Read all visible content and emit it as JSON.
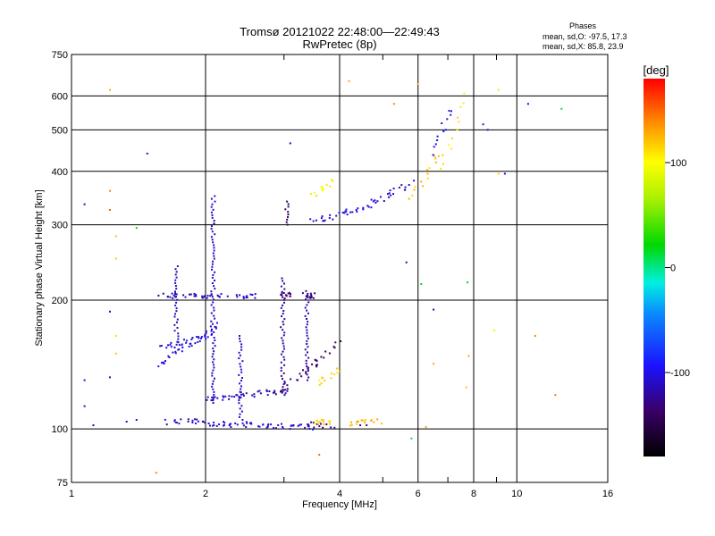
{
  "chart_data": {
    "type": "scatter",
    "title": "Tromsø 20121022 22:48:00—22:49:43",
    "subtitle": "RwPretec (8p)",
    "xlabel": "Frequency [MHz]",
    "ylabel": "Stationary phase Virtual Height [km]",
    "x_scale": "log",
    "y_scale": "log",
    "xlim": [
      1,
      16
    ],
    "ylim": [
      75,
      750
    ],
    "x_ticks": [
      1,
      2,
      4,
      6,
      8,
      10,
      16
    ],
    "x_minor_ticks": [
      3,
      5,
      7,
      9
    ],
    "y_ticks": [
      75,
      100,
      200,
      300,
      400,
      500,
      600,
      750
    ],
    "grid": true,
    "stats": {
      "header": "Phases",
      "line_o": "mean, sd,O:  -97.5, 17.3",
      "line_x": "mean, sd,X:  85.8, 23.9"
    },
    "colorbar": {
      "label": "[deg]",
      "range": [
        -180,
        180
      ],
      "ticks": [
        -100,
        0,
        100
      ],
      "colormap": "rainbow"
    },
    "traces": [
      {
        "f": [
          1.65,
          2.05
        ],
        "h": [
          104,
          104
        ],
        "phase": -110
      },
      {
        "f": [
          2.05,
          3.45
        ],
        "h": [
          103,
          101
        ],
        "phase": -105
      },
      {
        "f": [
          3.35,
          3.85
        ],
        "h": [
          103,
          101
        ],
        "phase": -125
      },
      {
        "f": [
          3.5,
          3.85
        ],
        "h": [
          104,
          104
        ],
        "phase": 120
      },
      {
        "f": [
          4.2,
          4.9
        ],
        "h": [
          103,
          104
        ],
        "phase": 125
      },
      {
        "f": [
          2.0,
          2.4
        ],
        "h": [
          118,
          119
        ],
        "phase": -110
      },
      {
        "f": [
          2.4,
          3.1
        ],
        "h": [
          120,
          123
        ],
        "phase": -115
      },
      {
        "f": [
          3.0,
          3.55
        ],
        "h": [
          124,
          145
        ],
        "phase": -135
      },
      {
        "f": [
          3.5,
          3.95
        ],
        "h": [
          138,
          160
        ],
        "phase": -140
      },
      {
        "f": [
          3.55,
          3.95
        ],
        "h": [
          128,
          138
        ],
        "phase": 110
      },
      {
        "f": [
          1.55,
          2.15
        ],
        "h": [
          140,
          175
        ],
        "phase": -105
      },
      {
        "f": [
          1.6,
          2.05
        ],
        "h": [
          155,
          165
        ],
        "phase": -100
      },
      {
        "f": [
          1.6,
          1.75
        ],
        "h": [
          205,
          205
        ],
        "phase": -120
      },
      {
        "f": [
          1.8,
          2.2
        ],
        "h": [
          205,
          205
        ],
        "phase": -110
      },
      {
        "f": [
          2.35,
          2.6
        ],
        "h": [
          205,
          205
        ],
        "phase": -110
      },
      {
        "f": [
          3.0,
          3.1
        ],
        "h": [
          205,
          205
        ],
        "phase": -130
      },
      {
        "f": [
          3.35,
          3.5
        ],
        "h": [
          205,
          205
        ],
        "phase": -130
      },
      {
        "f": [
          3.5,
          4.4
        ],
        "h": [
          305,
          325
        ],
        "phase": -105
      },
      {
        "f": [
          4.4,
          5.8
        ],
        "h": [
          325,
          375
        ],
        "phase": -110
      },
      {
        "f": [
          5.8,
          6.7
        ],
        "h": [
          345,
          440
        ],
        "phase": 120
      },
      {
        "f": [
          6.4,
          7.2
        ],
        "h": [
          440,
          560
        ],
        "phase": -100
      },
      {
        "f": [
          6.8,
          7.6
        ],
        "h": [
          400,
          600
        ],
        "phase": 110
      },
      {
        "f": [
          3.5,
          3.9
        ],
        "h": [
          350,
          380
        ],
        "phase": 105
      }
    ],
    "columns": [
      {
        "f": 2.08,
        "h": [
          115,
          350
        ],
        "phase": -110
      },
      {
        "f": 2.4,
        "h": [
          105,
          165
        ],
        "phase": -110
      },
      {
        "f": 2.98,
        "h": [
          120,
          225
        ],
        "phase": -120
      },
      {
        "f": 3.38,
        "h": [
          130,
          210
        ],
        "phase": -120
      },
      {
        "f": 1.72,
        "h": [
          155,
          240
        ],
        "phase": -110
      },
      {
        "f": 3.05,
        "h": [
          300,
          340
        ],
        "phase": -140
      }
    ],
    "scatter": [
      {
        "f": 1.07,
        "h": 335,
        "phase": -110
      },
      {
        "f": 1.07,
        "h": 130,
        "phase": -100
      },
      {
        "f": 1.07,
        "h": 113,
        "phase": -110
      },
      {
        "f": 1.12,
        "h": 102,
        "phase": -110
      },
      {
        "f": 1.22,
        "h": 620,
        "phase": 125
      },
      {
        "f": 1.22,
        "h": 360,
        "phase": 140
      },
      {
        "f": 1.22,
        "h": 325,
        "phase": 150
      },
      {
        "f": 1.22,
        "h": 188,
        "phase": -120
      },
      {
        "f": 1.22,
        "h": 132,
        "phase": -110
      },
      {
        "f": 1.26,
        "h": 282,
        "phase": 120
      },
      {
        "f": 1.26,
        "h": 250,
        "phase": 115
      },
      {
        "f": 1.26,
        "h": 165,
        "phase": 110
      },
      {
        "f": 1.26,
        "h": 150,
        "phase": 120
      },
      {
        "f": 1.33,
        "h": 104,
        "phase": -110
      },
      {
        "f": 1.4,
        "h": 295,
        "phase": 20
      },
      {
        "f": 1.4,
        "h": 105,
        "phase": -100
      },
      {
        "f": 1.48,
        "h": 440,
        "phase": -110
      },
      {
        "f": 1.55,
        "h": 79,
        "phase": 140
      },
      {
        "f": 3.1,
        "h": 465,
        "phase": -120
      },
      {
        "f": 3.6,
        "h": 87,
        "phase": 150
      },
      {
        "f": 4.2,
        "h": 650,
        "phase": 130
      },
      {
        "f": 4.45,
        "h": 102,
        "phase": -120
      },
      {
        "f": 4.6,
        "h": 102,
        "phase": -130
      },
      {
        "f": 5.65,
        "h": 245,
        "phase": -120
      },
      {
        "f": 5.8,
        "h": 95,
        "phase": 10
      },
      {
        "f": 6.1,
        "h": 218,
        "phase": 20
      },
      {
        "f": 6.5,
        "h": 190,
        "phase": -120
      },
      {
        "f": 6.5,
        "h": 142,
        "phase": 130
      },
      {
        "f": 6.25,
        "h": 101,
        "phase": 130
      },
      {
        "f": 7.75,
        "h": 220,
        "phase": 20
      },
      {
        "f": 7.8,
        "h": 148,
        "phase": 130
      },
      {
        "f": 7.7,
        "h": 125,
        "phase": 120
      },
      {
        "f": 8.4,
        "h": 515,
        "phase": -100
      },
      {
        "f": 8.6,
        "h": 500,
        "phase": -110
      },
      {
        "f": 8.9,
        "h": 170,
        "phase": 105
      },
      {
        "f": 9.1,
        "h": 620,
        "phase": 110
      },
      {
        "f": 9.4,
        "h": 395,
        "phase": -110
      },
      {
        "f": 9.1,
        "h": 395,
        "phase": 115
      },
      {
        "f": 11.0,
        "h": 165,
        "phase": 140
      },
      {
        "f": 12.2,
        "h": 120,
        "phase": 145
      },
      {
        "f": 12.6,
        "h": 560,
        "phase": 10
      },
      {
        "f": 10.6,
        "h": 575,
        "phase": -110
      },
      {
        "f": 6.0,
        "h": 640,
        "phase": 130
      },
      {
        "f": 5.3,
        "h": 575,
        "phase": 140
      }
    ]
  }
}
